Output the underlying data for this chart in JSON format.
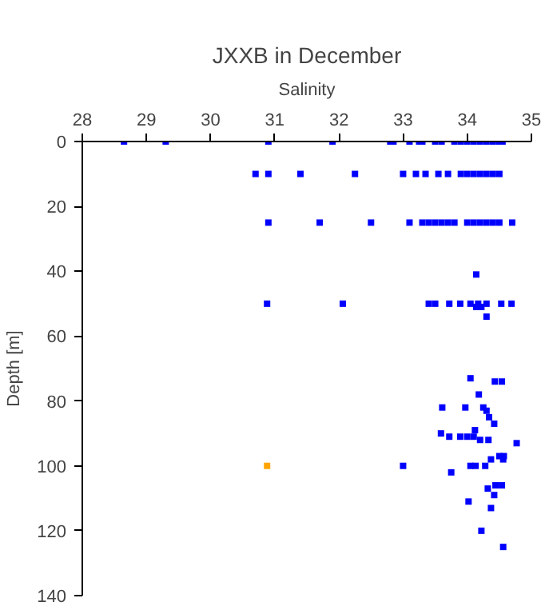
{
  "chart_data": {
    "type": "scatter",
    "title": "JXXB in December",
    "xlabel": "Salinity",
    "ylabel": "Depth [m]",
    "xlim": [
      28,
      35
    ],
    "xticks": [
      28,
      29,
      30,
      31,
      32,
      33,
      34,
      35
    ],
    "ylim": [
      140,
      0
    ],
    "yticks": [
      0,
      20,
      40,
      60,
      80,
      100,
      120,
      140
    ],
    "grid": false,
    "marker": "square",
    "series": [
      {
        "color": "#0000ff",
        "x": [
          28.65,
          29.3,
          30.9,
          31.9,
          32.8,
          32.85,
          33.1,
          33.25,
          33.3,
          33.5,
          33.6,
          33.8,
          33.9,
          34.0,
          34.1,
          34.2,
          34.3,
          34.4,
          34.5,
          34.55,
          30.7,
          30.9,
          31.4,
          32.25,
          33.0,
          33.2,
          33.35,
          33.55,
          33.7,
          33.9,
          34.0,
          34.1,
          34.2,
          34.3,
          34.4,
          34.5,
          30.9,
          31.7,
          32.5,
          33.1,
          33.3,
          33.4,
          33.5,
          33.6,
          33.7,
          33.8,
          34.0,
          34.1,
          34.2,
          34.3,
          34.4,
          34.5,
          34.7,
          34.14,
          30.88,
          32.06,
          33.4,
          33.5,
          33.72,
          33.89,
          34.05,
          34.17,
          34.3,
          34.53,
          34.69,
          34.14,
          34.22,
          34.3,
          34.05,
          34.43,
          34.54,
          34.18,
          33.61,
          33.97,
          34.25,
          34.3,
          34.34,
          34.42,
          34.12,
          33.59,
          33.72,
          33.89,
          34.0,
          34.1,
          34.2,
          34.33,
          34.77,
          34.5,
          34.57,
          34.37,
          34.56,
          33.0,
          34.05,
          34.13,
          34.28,
          33.75,
          34.44,
          34.54,
          34.32,
          34.42,
          34.02,
          34.37,
          34.22,
          34.56
        ],
        "values": [
          0,
          0,
          0,
          0,
          0,
          0,
          0,
          0,
          0,
          0,
          0,
          0,
          0,
          0,
          0,
          0,
          0,
          0,
          0,
          0,
          10,
          10,
          10,
          10,
          10,
          10,
          10,
          10,
          10,
          10,
          10,
          10,
          10,
          10,
          10,
          10,
          25,
          25,
          25,
          25,
          25,
          25,
          25,
          25,
          25,
          25,
          25,
          25,
          25,
          25,
          25,
          25,
          25,
          41,
          50,
          50,
          50,
          50,
          50,
          50,
          50,
          50,
          50,
          50,
          50,
          51,
          51,
          54,
          73,
          74,
          74,
          78,
          82,
          82,
          82,
          83,
          85,
          87,
          89,
          90,
          91,
          91,
          91,
          91,
          92,
          92,
          93,
          97,
          97,
          98,
          98,
          100,
          100,
          100,
          100,
          102,
          106,
          106,
          107,
          109,
          111,
          113,
          120,
          125
        ]
      },
      {
        "color": "#ffa500",
        "x": [
          30.88
        ],
        "values": [
          100
        ]
      }
    ]
  }
}
